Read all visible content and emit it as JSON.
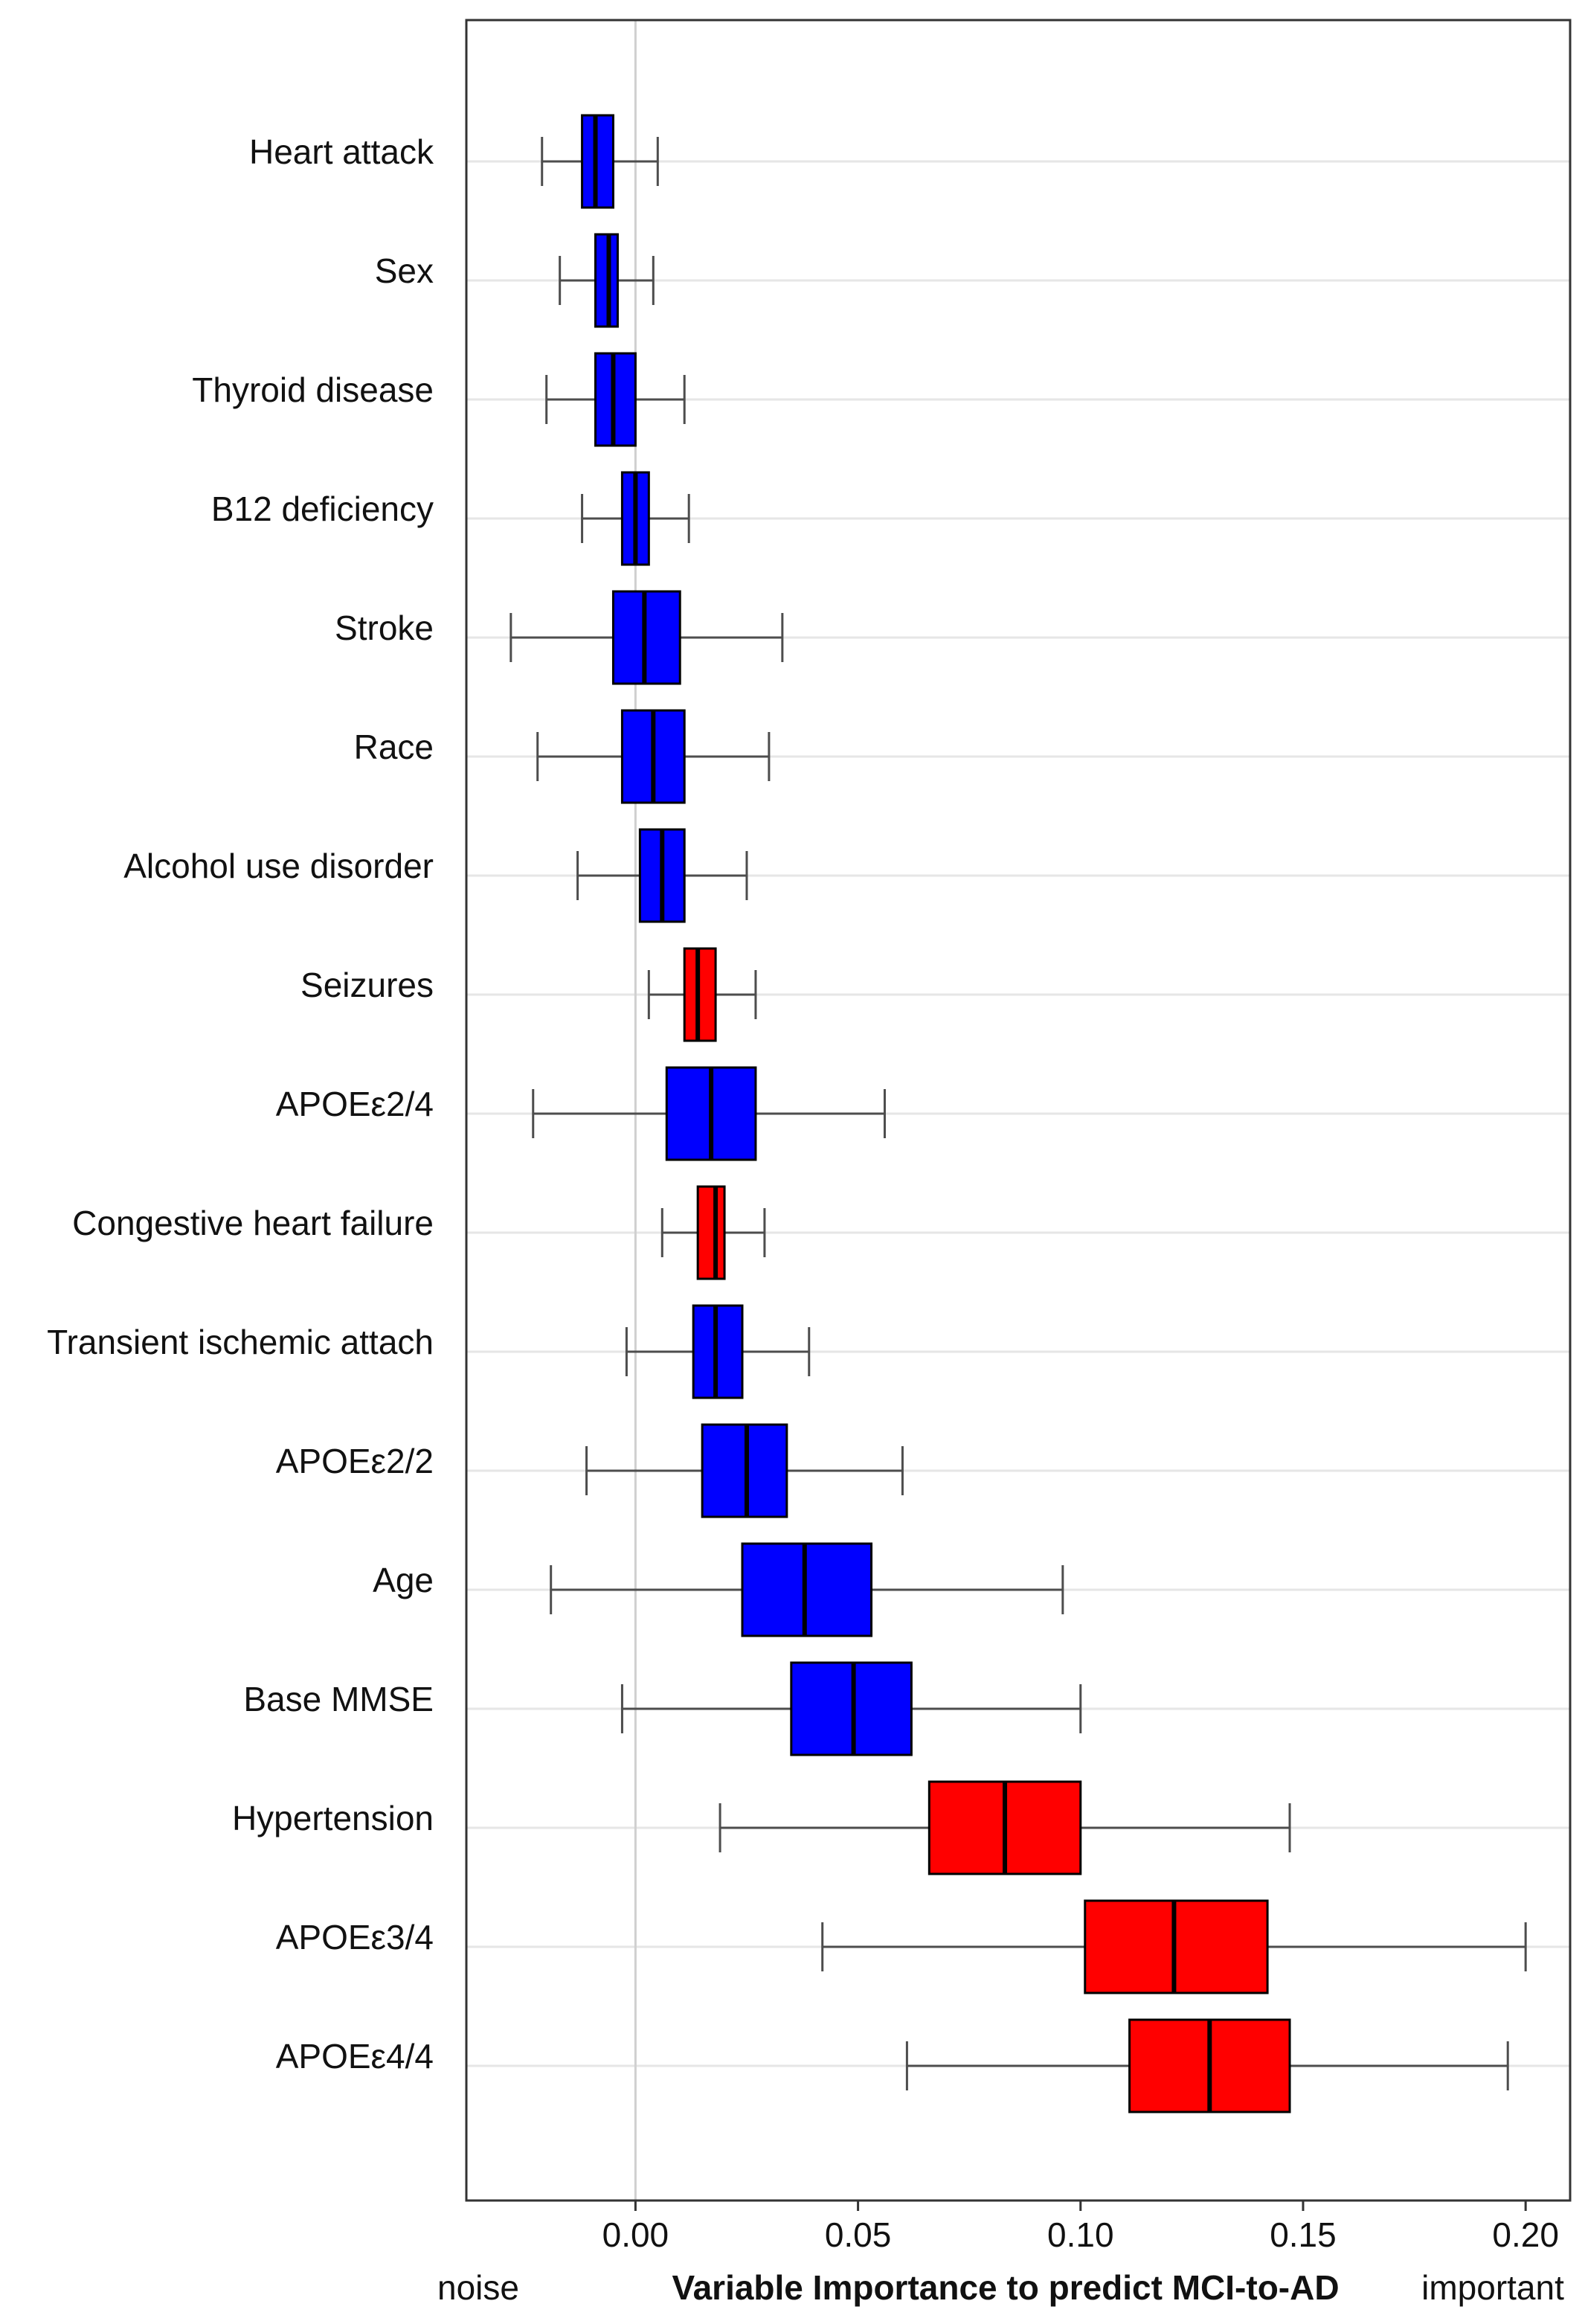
{
  "chart_data": {
    "type": "boxplot",
    "orientation": "horizontal",
    "xlabel": "Variable Importance to predict MCI-to-AD",
    "left_note": "noise",
    "right_note": "important",
    "xlim": [
      -0.038,
      0.21
    ],
    "xticks": [
      0.0,
      0.05,
      0.1,
      0.15,
      0.2
    ],
    "xtick_labels": [
      "0.00",
      "0.05",
      "0.10",
      "0.15",
      "0.20"
    ],
    "reference_line": 0.0,
    "grid": true,
    "colors": {
      "tentative": "#0000ff",
      "important": "#ff0000",
      "line": "#000000",
      "grid": "#e6e6e6",
      "whisker": "#4d4d4d"
    },
    "series": [
      {
        "name": "Heart attack",
        "category": "tentative",
        "min": -0.021,
        "q1": -0.012,
        "median": -0.009,
        "q3": -0.005,
        "max": 0.005
      },
      {
        "name": "Sex",
        "category": "tentative",
        "min": -0.017,
        "q1": -0.009,
        "median": -0.006,
        "q3": -0.004,
        "max": 0.004
      },
      {
        "name": "Thyroid disease",
        "category": "tentative",
        "min": -0.02,
        "q1": -0.009,
        "median": -0.005,
        "q3": 0.0,
        "max": 0.011
      },
      {
        "name": "B12 deficiency",
        "category": "tentative",
        "min": -0.012,
        "q1": -0.003,
        "median": 0.0,
        "q3": 0.003,
        "max": 0.012
      },
      {
        "name": "Stroke",
        "category": "tentative",
        "min": -0.028,
        "q1": -0.005,
        "median": 0.002,
        "q3": 0.01,
        "max": 0.033
      },
      {
        "name": "Race",
        "category": "tentative",
        "min": -0.022,
        "q1": -0.003,
        "median": 0.004,
        "q3": 0.011,
        "max": 0.03
      },
      {
        "name": "Alcohol use disorder",
        "category": "tentative",
        "min": -0.013,
        "q1": 0.001,
        "median": 0.006,
        "q3": 0.011,
        "max": 0.025
      },
      {
        "name": "Seizures",
        "category": "important",
        "min": 0.003,
        "q1": 0.011,
        "median": 0.014,
        "q3": 0.018,
        "max": 0.027
      },
      {
        "name": "APOEε2/4",
        "category": "tentative",
        "min": -0.023,
        "q1": 0.007,
        "median": 0.017,
        "q3": 0.027,
        "max": 0.056
      },
      {
        "name": "Congestive heart failure",
        "category": "important",
        "min": 0.006,
        "q1": 0.014,
        "median": 0.018,
        "q3": 0.02,
        "max": 0.029
      },
      {
        "name": "Transient ischemic attach",
        "category": "tentative",
        "min": -0.002,
        "q1": 0.013,
        "median": 0.018,
        "q3": 0.024,
        "max": 0.039
      },
      {
        "name": "APOEε2/2",
        "category": "tentative",
        "min": -0.011,
        "q1": 0.015,
        "median": 0.025,
        "q3": 0.034,
        "max": 0.06
      },
      {
        "name": "Age",
        "category": "tentative",
        "min": -0.019,
        "q1": 0.024,
        "median": 0.038,
        "q3": 0.053,
        "max": 0.096
      },
      {
        "name": "Base MMSE",
        "category": "tentative",
        "min": -0.003,
        "q1": 0.035,
        "median": 0.049,
        "q3": 0.062,
        "max": 0.1
      },
      {
        "name": "Hypertension",
        "category": "important",
        "min": 0.019,
        "q1": 0.066,
        "median": 0.083,
        "q3": 0.1,
        "max": 0.147
      },
      {
        "name": "APOEε3/4",
        "category": "important",
        "min": 0.042,
        "q1": 0.101,
        "median": 0.121,
        "q3": 0.142,
        "max": 0.2
      },
      {
        "name": "APOEε4/4",
        "category": "important",
        "min": 0.061,
        "q1": 0.111,
        "median": 0.129,
        "q3": 0.147,
        "max": 0.196
      }
    ]
  }
}
